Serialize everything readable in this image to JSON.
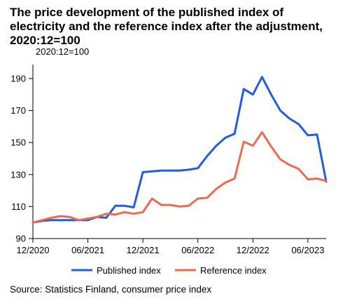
{
  "title": "The price development of the published index of electricity and the reference index after the adjustment, 2020:12=100",
  "subtitle": "2020:12=100",
  "source": "Source: Statistics Finland, consumer price index",
  "colors": {
    "published": "#1f5ee0",
    "reference": "#ee6a4f",
    "axis": "#000000"
  },
  "chart_data": {
    "type": "line",
    "x": [
      "2020-12",
      "2021-01",
      "2021-02",
      "2021-03",
      "2021-04",
      "2021-05",
      "2021-06",
      "2021-07",
      "2021-08",
      "2021-09",
      "2021-10",
      "2021-11",
      "2021-12",
      "2022-01",
      "2022-02",
      "2022-03",
      "2022-04",
      "2022-05",
      "2022-06",
      "2022-07",
      "2022-08",
      "2022-09",
      "2022-10",
      "2022-11",
      "2022-12",
      "2023-01",
      "2023-02",
      "2023-03",
      "2023-04",
      "2023-05",
      "2023-06",
      "2023-07",
      "2023-08"
    ],
    "xtick_labels": [
      "12/2020",
      "06/2021",
      "12/2021",
      "06/2022",
      "12/2022",
      "06/2023"
    ],
    "xtick_index": [
      0,
      6,
      12,
      18,
      24,
      30
    ],
    "ylim": [
      90,
      197
    ],
    "yticks": [
      90,
      110,
      130,
      150,
      170,
      190
    ],
    "grid": false,
    "legend_position": "bottom",
    "series": [
      {
        "name": "Published index",
        "values": [
          100,
          101,
          101.5,
          101.5,
          101.5,
          101.5,
          101.5,
          103.5,
          103,
          110.5,
          110.5,
          109.5,
          131.5,
          132,
          132.5,
          132.5,
          132.5,
          133,
          134,
          141.5,
          148,
          153,
          155.5,
          183.5,
          180,
          191,
          180,
          170,
          165,
          161.5,
          154.5,
          155,
          125.5
        ]
      },
      {
        "name": "Reference index",
        "values": [
          100,
          101.5,
          103,
          104,
          103.5,
          101.5,
          102.5,
          103.5,
          105.5,
          105,
          106.5,
          105.5,
          106.5,
          115,
          111,
          111,
          110,
          110.5,
          115,
          115.5,
          121,
          125,
          127.5,
          150.5,
          148,
          156.5,
          147.5,
          139.5,
          136,
          133.5,
          127,
          127.5,
          126
        ]
      }
    ]
  }
}
